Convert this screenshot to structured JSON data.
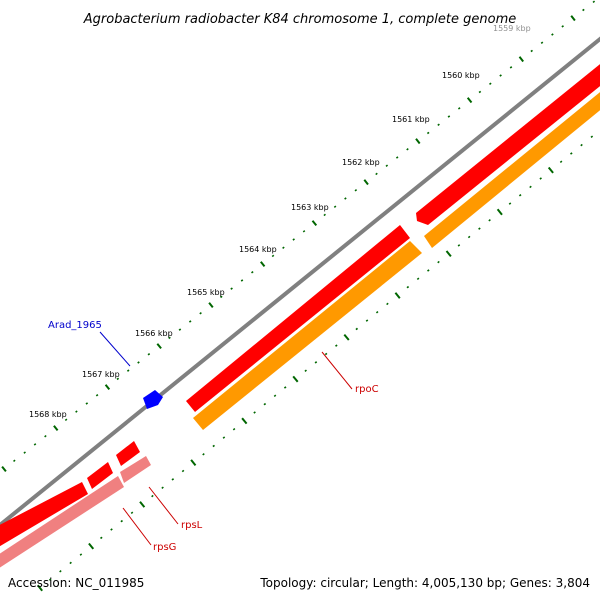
{
  "title": "Agrobacterium radiobacter K84 chromosome 1, complete genome",
  "footer": {
    "accession": "Accession: NC_011985",
    "summary": "Topology: circular; Length: 4,005,130 bp; Genes: 3,804"
  },
  "ticks": [
    "1559 kbp",
    "1560 kbp",
    "1561 kbp",
    "1562 kbp",
    "1563 kbp",
    "1564 kbp",
    "1565 kbp",
    "1566 kbp",
    "1567 kbp",
    "1568 kbp"
  ],
  "genes": [
    {
      "label": "Arad_1965",
      "color": "#0000cc"
    },
    {
      "label": "rpoC",
      "color": "#cc0000"
    },
    {
      "label": "rpsL",
      "color": "#cc0000"
    },
    {
      "label": "rpsG",
      "color": "#cc0000"
    }
  ],
  "colors": {
    "backbone": "#808080",
    "gene_forward": "#ff0000",
    "cds": "#ff9900",
    "cds_light": "#f08080",
    "ticks": "#006600",
    "misc_feature": "#0000ff"
  }
}
